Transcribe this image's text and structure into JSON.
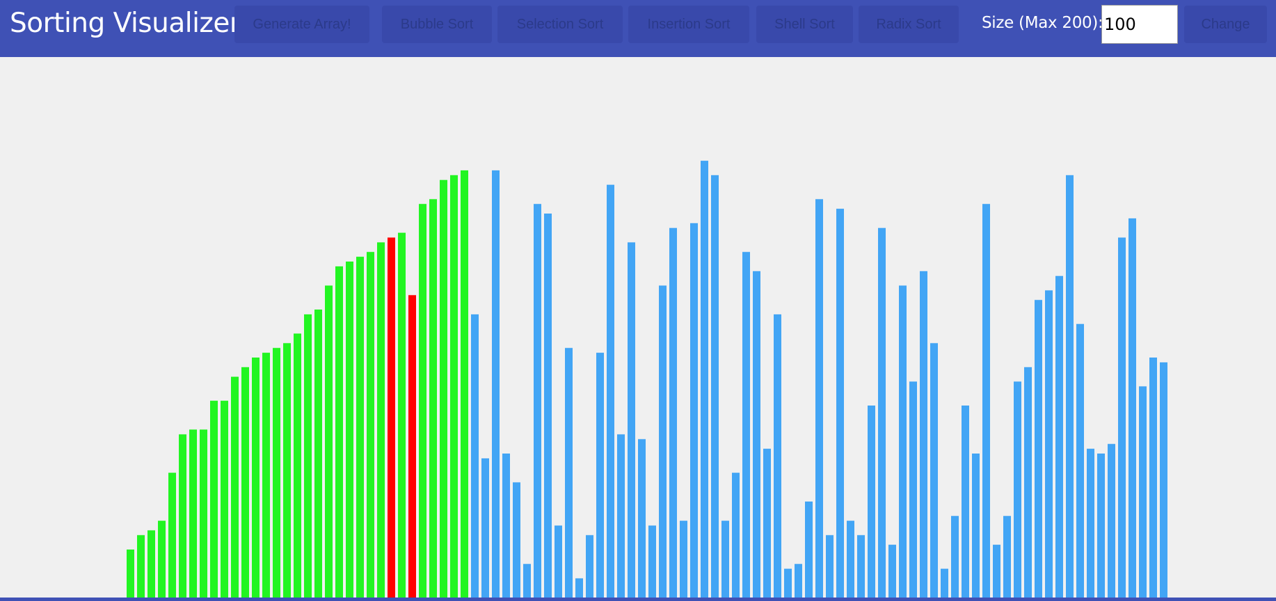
{
  "app": {
    "title": "Sorting Visualizer!"
  },
  "toolbar": {
    "buttons": [
      {
        "key": "generate",
        "label": "Generate Array!"
      },
      {
        "key": "bubble",
        "label": "Bubble Sort"
      },
      {
        "key": "selection",
        "label": "Selection Sort"
      },
      {
        "key": "insertion",
        "label": "Insertion Sort"
      },
      {
        "key": "shell",
        "label": "Shell Sort"
      },
      {
        "key": "radix",
        "label": "Radix Sort"
      }
    ],
    "size_label": "Size (Max 200):",
    "size_value": "100",
    "change_label": "Change"
  },
  "colors": {
    "navbar": "#3f51b5",
    "button_bg": "#3949ab",
    "sorted_bar": "#22f522",
    "comparing_bar": "#ff0000",
    "unsorted_bar": "#42a5f5",
    "background": "#f0f0f0"
  },
  "array": {
    "max_value": 100,
    "values": [
      10,
      13,
      14,
      16,
      26,
      34,
      35,
      35,
      41,
      41,
      46,
      48,
      50,
      51,
      52,
      53,
      55,
      59,
      60,
      65,
      69,
      70,
      71,
      72,
      74,
      75,
      76,
      63,
      82,
      83,
      87,
      88,
      89,
      59,
      29,
      89,
      30,
      24,
      7,
      82,
      80,
      15,
      52,
      4,
      13,
      51,
      86,
      34,
      74,
      33,
      15,
      65,
      77,
      16,
      78,
      91,
      88,
      16,
      26,
      72,
      68,
      31,
      59,
      6,
      7,
      20,
      83,
      13,
      81,
      16,
      13,
      40,
      77,
      11,
      65,
      45,
      68,
      53,
      6,
      17,
      40,
      30,
      82,
      11,
      17,
      45,
      48,
      62,
      64,
      67,
      88,
      57,
      31,
      30,
      32,
      75,
      79,
      44,
      50,
      49
    ]
  },
  "bar_states": {
    "sorted_count": 33,
    "comparing_indices": [
      25,
      27
    ]
  }
}
